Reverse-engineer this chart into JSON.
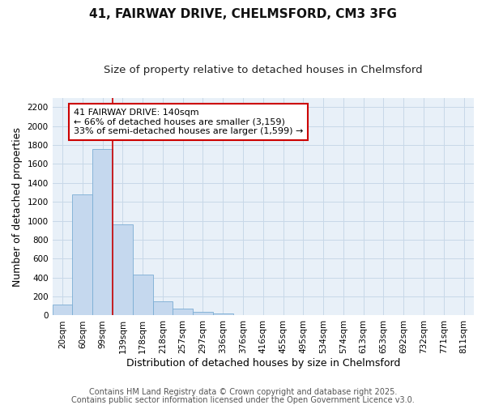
{
  "title1": "41, FAIRWAY DRIVE, CHELMSFORD, CM3 3FG",
  "title2": "Size of property relative to detached houses in Chelmsford",
  "xlabel": "Distribution of detached houses by size in Chelmsford",
  "ylabel": "Number of detached properties",
  "bin_labels": [
    "20sqm",
    "60sqm",
    "99sqm",
    "139sqm",
    "178sqm",
    "218sqm",
    "257sqm",
    "297sqm",
    "336sqm",
    "376sqm",
    "416sqm",
    "455sqm",
    "495sqm",
    "534sqm",
    "574sqm",
    "613sqm",
    "653sqm",
    "692sqm",
    "732sqm",
    "771sqm",
    "811sqm"
  ],
  "bar_values": [
    115,
    1280,
    1760,
    960,
    430,
    150,
    75,
    40,
    20,
    0,
    0,
    0,
    0,
    0,
    0,
    0,
    0,
    0,
    0,
    0,
    0
  ],
  "bar_color": "#c5d8ee",
  "bar_edge_color": "#7aadd4",
  "ylim": [
    0,
    2300
  ],
  "yticks": [
    0,
    200,
    400,
    600,
    800,
    1000,
    1200,
    1400,
    1600,
    1800,
    2000,
    2200
  ],
  "annotation_text": "41 FAIRWAY DRIVE: 140sqm\n← 66% of detached houses are smaller (3,159)\n33% of semi-detached houses are larger (1,599) →",
  "annotation_box_color": "#ffffff",
  "annotation_border_color": "#cc0000",
  "vline_color": "#cc0000",
  "fig_bg_color": "#ffffff",
  "plot_bg_color": "#e8f0f8",
  "grid_color": "#c8d8e8",
  "footer1": "Contains HM Land Registry data © Crown copyright and database right 2025.",
  "footer2": "Contains public sector information licensed under the Open Government Licence v3.0.",
  "title_fontsize": 11,
  "subtitle_fontsize": 9.5,
  "axis_label_fontsize": 9,
  "tick_fontsize": 7.5,
  "footer_fontsize": 7,
  "annot_fontsize": 8
}
